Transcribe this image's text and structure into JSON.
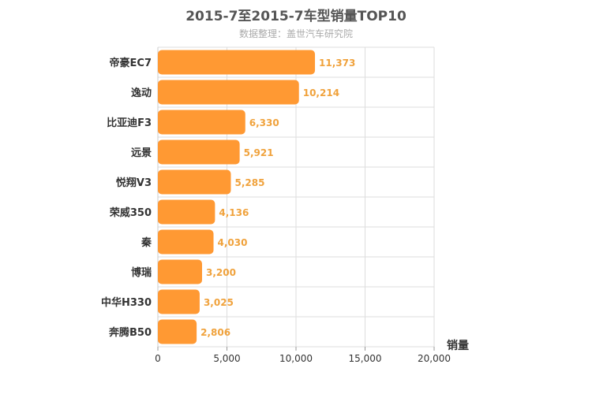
{
  "chart_data": {
    "type": "bar",
    "orientation": "horizontal",
    "title": "2015-7至2015-7车型销量TOP10",
    "subtitle": "数据整理：盖世汽车研究院",
    "xlabel": "销量",
    "categories": [
      "帝豪EC7",
      "逸动",
      "比亚迪F3",
      "远景",
      "悦翔V3",
      "荣威350",
      "秦",
      "博瑞",
      "中华H330",
      "奔腾B50"
    ],
    "values": [
      11373,
      10214,
      6330,
      5921,
      5285,
      4136,
      4030,
      3200,
      3025,
      2806
    ],
    "value_labels": [
      "11,373",
      "10,214",
      "6,330",
      "5,921",
      "5,285",
      "4,136",
      "4,030",
      "3,200",
      "3,025",
      "2,806"
    ],
    "xlim": [
      0,
      20000
    ],
    "xticks": [
      0,
      5000,
      10000,
      15000,
      20000
    ],
    "xtick_labels": [
      "0",
      "5,000",
      "10,000",
      "15,000",
      "20,000"
    ],
    "grid": true,
    "legend": "none",
    "colors": {
      "bar": "#ff9933",
      "data_label": "#f0a23c",
      "grid": "#dddddd",
      "text": "#333333"
    }
  }
}
